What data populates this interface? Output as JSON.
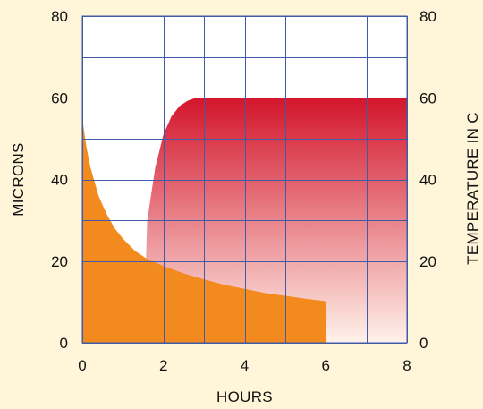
{
  "chart_data": {
    "type": "area",
    "xlabel": "HOURS",
    "ylabel": "MICRONS",
    "y2label": "TEMPERATURE IN C",
    "xlim": [
      0,
      8
    ],
    "ylim": [
      0,
      80
    ],
    "y2lim": [
      0,
      80
    ],
    "x_ticks": [
      0,
      2,
      4,
      6,
      8
    ],
    "y_ticks": [
      0,
      20,
      40,
      60,
      80
    ],
    "y2_ticks": [
      0,
      20,
      40,
      60,
      80
    ],
    "grid": true,
    "colors": {
      "background": "#fff5d9",
      "plot_background": "#ffffff",
      "grid": "#3f5ba8",
      "microns_fill": "#f28a1d",
      "temperature_fill_top": "#d3152b",
      "temperature_fill_bottom": "#fff2ea"
    },
    "series": [
      {
        "axis": "right",
        "style": "gradient-area",
        "x": [
          0.0,
          1.5,
          1.6,
          1.8,
          2.0,
          2.2,
          2.4,
          2.6,
          2.8,
          3.0,
          4.0,
          5.0,
          6.0,
          7.0,
          8.0
        ],
        "y": [
          0,
          0,
          30,
          43,
          51,
          55.5,
          58,
          59.3,
          60,
          60,
          60,
          60,
          60,
          60,
          60
        ]
      },
      {
        "axis": "left",
        "style": "solid-area",
        "x": [
          0.0,
          0.1,
          0.2,
          0.4,
          0.6,
          0.8,
          1.0,
          1.3,
          1.6,
          2.0,
          2.5,
          3.0,
          3.5,
          4.0,
          4.5,
          5.0,
          5.5,
          6.0
        ],
        "y": [
          55,
          48,
          43,
          36,
          31.5,
          28,
          25.5,
          22.5,
          20.5,
          18.8,
          17,
          15.5,
          14.2,
          13.2,
          12.2,
          11.5,
          10.8,
          10.2
        ]
      }
    ]
  }
}
